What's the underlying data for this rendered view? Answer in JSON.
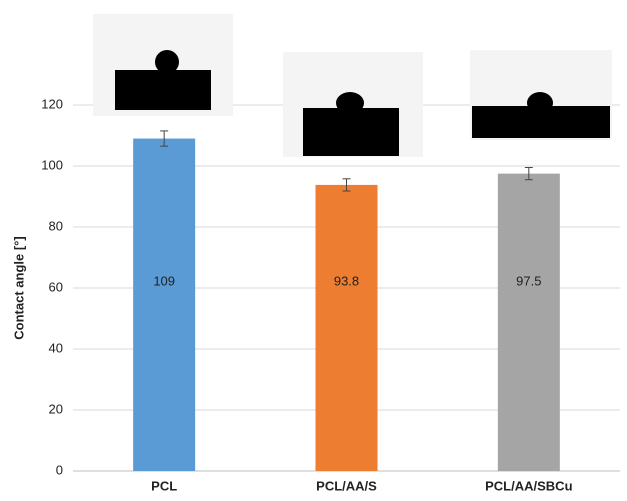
{
  "chart_data": {
    "type": "bar",
    "y_label": "Contact angle [°]",
    "categories": [
      "PCL",
      "PCL/AA/S",
      "PCL/AA/SBCu"
    ],
    "values": [
      109,
      93.8,
      97.5
    ],
    "errors": [
      2.5,
      2,
      2
    ],
    "colors": [
      "#5b9bd5",
      "#ed7d31",
      "#a5a5a5"
    ],
    "ylim": [
      0,
      140
    ],
    "yticks": [
      0,
      20,
      40,
      60,
      80,
      100,
      120
    ],
    "grid": true
  }
}
